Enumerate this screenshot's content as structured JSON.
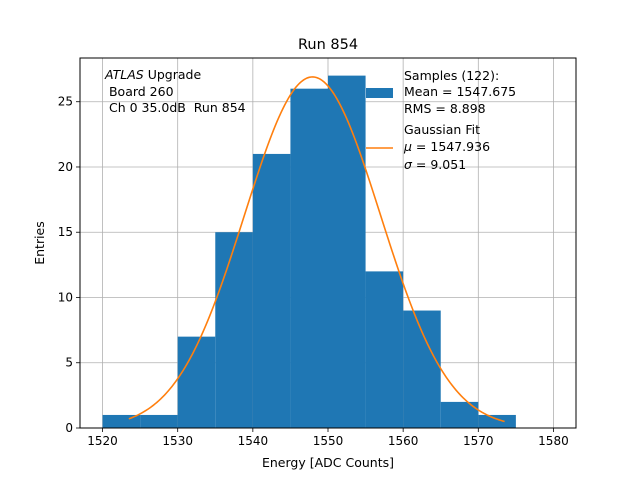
{
  "chart_data": {
    "type": "bar",
    "title": "Run 854",
    "xlabel": "Energy [ADC Counts]",
    "ylabel": "Entries",
    "xlim": [
      1517,
      1583
    ],
    "ylim": [
      0,
      28.35
    ],
    "grid": true,
    "xticks": [
      1520,
      1530,
      1540,
      1550,
      1560,
      1570,
      1580
    ],
    "yticks": [
      0,
      5,
      10,
      15,
      20,
      25
    ],
    "histogram": {
      "name": "Samples (122):",
      "color": "#1f77b4",
      "bins": [
        {
          "x0": 1520,
          "x1": 1525,
          "count": 1
        },
        {
          "x0": 1525,
          "x1": 1530,
          "count": 1
        },
        {
          "x0": 1530,
          "x1": 1535,
          "count": 7
        },
        {
          "x0": 1535,
          "x1": 1540,
          "count": 15
        },
        {
          "x0": 1540,
          "x1": 1545,
          "count": 21
        },
        {
          "x0": 1545,
          "x1": 1550,
          "count": 26
        },
        {
          "x0": 1550,
          "x1": 1555,
          "count": 27
        },
        {
          "x0": 1555,
          "x1": 1560,
          "count": 12
        },
        {
          "x0": 1560,
          "x1": 1565,
          "count": 9
        },
        {
          "x0": 1565,
          "x1": 1570,
          "count": 2
        },
        {
          "x0": 1570,
          "x1": 1575,
          "count": 1
        }
      ]
    },
    "fit": {
      "name": "Gaussian Fit",
      "color": "#ff7f0e",
      "amplitude": 26.9,
      "mu": 1547.936,
      "sigma": 9.051,
      "x_range": [
        1523.5,
        1573.5
      ]
    },
    "annotation": {
      "italic_part": "ATLAS",
      "rest": " Upgrade",
      "line2": " Board 260",
      "line3": " Ch 0 35.0dB  Run 854"
    },
    "legend": {
      "placement": "top-right",
      "hist_lines": [
        "Samples (122):",
        "Mean = 1547.675",
        "RMS = 8.898"
      ],
      "fit_title": "Gaussian Fit",
      "fit_mu_symbol": "μ",
      "fit_mu_value": " = 1547.936",
      "fit_sigma_symbol": "σ",
      "fit_sigma_value": " = 9.051"
    }
  }
}
